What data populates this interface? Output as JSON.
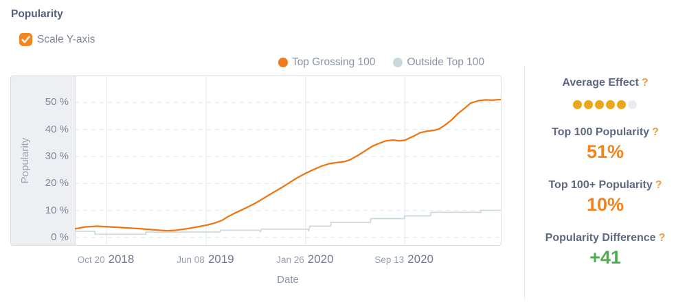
{
  "title": "Popularity",
  "controls": {
    "scale_y_axis_label": "Scale Y-axis",
    "scale_y_axis_checked": true,
    "checkbox_color": "#f5851d"
  },
  "legend": [
    {
      "label": "Top Grossing 100",
      "color": "#ef7b1b"
    },
    {
      "label": "Outside Top 100",
      "color": "#c9d8df"
    }
  ],
  "chart_data": {
    "type": "line",
    "title": "",
    "xlabel": "Date",
    "ylabel": "Popularity",
    "ylim": [
      0,
      59
    ],
    "yticks": [
      0,
      10,
      20,
      30,
      40,
      50
    ],
    "ytick_suffix": " %",
    "grid": "horizontal-dashed, vertical-solid",
    "legend_position": "top",
    "xticks": [
      {
        "pos": 0.074,
        "date": "Oct 20",
        "year": "2018"
      },
      {
        "pos": 0.307,
        "date": "Jun 08",
        "year": "2019"
      },
      {
        "pos": 0.54,
        "date": "Jan 26",
        "year": "2020"
      },
      {
        "pos": 0.772,
        "date": "Sep 13",
        "year": "2020"
      }
    ],
    "series": [
      {
        "name": "Top Grossing 100",
        "color": "#ee7716",
        "width": 2.3,
        "points": [
          [
            0.0,
            3.2
          ],
          [
            0.023,
            3.9
          ],
          [
            0.052,
            4.2
          ],
          [
            0.074,
            4.0
          ],
          [
            0.1,
            3.8
          ],
          [
            0.124,
            3.5
          ],
          [
            0.148,
            3.3
          ],
          [
            0.172,
            3.0
          ],
          [
            0.196,
            2.7
          ],
          [
            0.217,
            2.5
          ],
          [
            0.237,
            2.7
          ],
          [
            0.261,
            3.2
          ],
          [
            0.285,
            3.9
          ],
          [
            0.309,
            4.6
          ],
          [
            0.328,
            5.4
          ],
          [
            0.345,
            6.4
          ],
          [
            0.357,
            7.6
          ],
          [
            0.374,
            9.0
          ],
          [
            0.39,
            10.2
          ],
          [
            0.406,
            11.4
          ],
          [
            0.422,
            12.7
          ],
          [
            0.438,
            14.2
          ],
          [
            0.454,
            15.7
          ],
          [
            0.47,
            17.2
          ],
          [
            0.486,
            18.7
          ],
          [
            0.502,
            20.3
          ],
          [
            0.519,
            22.0
          ],
          [
            0.539,
            23.7
          ],
          [
            0.559,
            25.2
          ],
          [
            0.578,
            26.5
          ],
          [
            0.596,
            27.4
          ],
          [
            0.615,
            27.8
          ],
          [
            0.631,
            28.1
          ],
          [
            0.644,
            28.8
          ],
          [
            0.663,
            30.5
          ],
          [
            0.68,
            32.2
          ],
          [
            0.696,
            33.8
          ],
          [
            0.712,
            34.9
          ],
          [
            0.728,
            35.8
          ],
          [
            0.744,
            36.1
          ],
          [
            0.76,
            35.8
          ],
          [
            0.773,
            36.1
          ],
          [
            0.792,
            37.5
          ],
          [
            0.808,
            38.8
          ],
          [
            0.824,
            39.4
          ],
          [
            0.841,
            39.7
          ],
          [
            0.852,
            40.2
          ],
          [
            0.865,
            41.5
          ],
          [
            0.881,
            43.5
          ],
          [
            0.897,
            46.0
          ],
          [
            0.913,
            48.0
          ],
          [
            0.926,
            49.8
          ],
          [
            0.945,
            50.7
          ],
          [
            0.961,
            51.0
          ],
          [
            0.977,
            50.9
          ],
          [
            1.0,
            51.2
          ]
        ]
      },
      {
        "name": "Outside Top 100",
        "color": "#ccd9df",
        "width": 1.7,
        "points": [
          [
            0.0,
            2.3
          ],
          [
            0.047,
            2.3
          ],
          [
            0.047,
            1.2
          ],
          [
            0.166,
            1.2
          ],
          [
            0.166,
            2.0
          ],
          [
            0.34,
            2.0
          ],
          [
            0.34,
            2.7
          ],
          [
            0.432,
            2.7
          ],
          [
            0.434,
            2.1
          ],
          [
            0.437,
            3.1
          ],
          [
            0.545,
            3.1
          ],
          [
            0.547,
            2.4
          ],
          [
            0.55,
            4.2
          ],
          [
            0.599,
            4.2
          ],
          [
            0.599,
            5.6
          ],
          [
            0.692,
            5.6
          ],
          [
            0.692,
            7.0
          ],
          [
            0.771,
            7.0
          ],
          [
            0.771,
            8.0
          ],
          [
            0.833,
            8.0
          ],
          [
            0.833,
            9.3
          ],
          [
            0.95,
            9.3
          ],
          [
            0.95,
            10.1
          ],
          [
            1.0,
            10.1
          ]
        ]
      }
    ]
  },
  "stats": [
    {
      "label": "Average Effect",
      "help": "?",
      "rating": {
        "filled": 5,
        "total": 6,
        "fill_color": "#eba61e",
        "empty_color": "#e9ebef"
      }
    },
    {
      "label": "Top 100 Popularity",
      "help": "?",
      "value": "51%",
      "value_color": "#f5831c"
    },
    {
      "label": "Top 100+ Popularity",
      "help": "?",
      "value": "10%",
      "value_color": "#f5831c"
    },
    {
      "label": "Popularity Difference",
      "help": "?",
      "value": "+41",
      "value_color": "#4cae4f"
    }
  ]
}
